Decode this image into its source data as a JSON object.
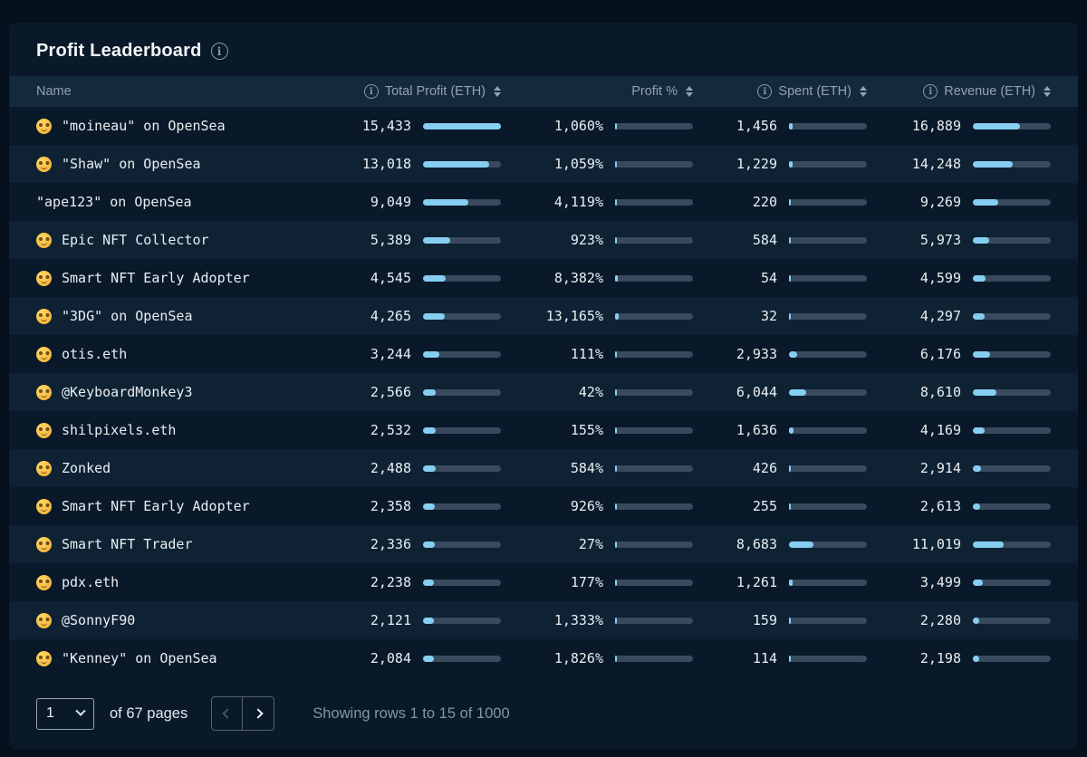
{
  "title": "Profit Leaderboard",
  "columns": {
    "name": "Name",
    "total_profit": "Total Profit (ETH)",
    "profit_pct": "Profit %",
    "spent": "Spent (ETH)",
    "revenue": "Revenue (ETH)"
  },
  "bar_max": {
    "total_profit": 15433,
    "profit_pct": 280000,
    "spent": 28000,
    "revenue": 28000
  },
  "colors": {
    "bar_fill": "#85cef2",
    "bar_track": "#394a5e",
    "row_alt": "#0e2233",
    "header_row": "#14293c",
    "card_bg": "#0a1929"
  },
  "rows": [
    {
      "emoji": "nerd-face",
      "name": "\"moineau\" on OpenSea",
      "total_profit": 15433,
      "total_profit_display": "15,433",
      "profit_pct": 1060,
      "profit_pct_display": "1,060%",
      "spent": 1456,
      "spent_display": "1,456",
      "revenue": 16889,
      "revenue_display": "16,889"
    },
    {
      "emoji": "nerd-face",
      "name": "\"Shaw\" on OpenSea",
      "total_profit": 13018,
      "total_profit_display": "13,018",
      "profit_pct": 1059,
      "profit_pct_display": "1,059%",
      "spent": 1229,
      "spent_display": "1,229",
      "revenue": 14248,
      "revenue_display": "14,248"
    },
    {
      "emoji": "",
      "name": "\"ape123\" on OpenSea",
      "total_profit": 9049,
      "total_profit_display": "9,049",
      "profit_pct": 4119,
      "profit_pct_display": "4,119%",
      "spent": 220,
      "spent_display": "220",
      "revenue": 9269,
      "revenue_display": "9,269"
    },
    {
      "emoji": "nerd-face",
      "name": "Epic NFT Collector",
      "total_profit": 5389,
      "total_profit_display": "5,389",
      "profit_pct": 923,
      "profit_pct_display": "923%",
      "spent": 584,
      "spent_display": "584",
      "revenue": 5973,
      "revenue_display": "5,973"
    },
    {
      "emoji": "nerd-face",
      "name": "Smart NFT Early Adopter",
      "total_profit": 4545,
      "total_profit_display": "4,545",
      "profit_pct": 8382,
      "profit_pct_display": "8,382%",
      "spent": 54,
      "spent_display": "54",
      "revenue": 4599,
      "revenue_display": "4,599"
    },
    {
      "emoji": "nerd-face",
      "name": "\"3DG\" on OpenSea",
      "total_profit": 4265,
      "total_profit_display": "4,265",
      "profit_pct": 13165,
      "profit_pct_display": "13,165%",
      "spent": 32,
      "spent_display": "32",
      "revenue": 4297,
      "revenue_display": "4,297"
    },
    {
      "emoji": "nerd-face",
      "name": "otis.eth",
      "total_profit": 3244,
      "total_profit_display": "3,244",
      "profit_pct": 111,
      "profit_pct_display": "111%",
      "spent": 2933,
      "spent_display": "2,933",
      "revenue": 6176,
      "revenue_display": "6,176"
    },
    {
      "emoji": "nerd-face",
      "name": "@KeyboardMonkey3",
      "total_profit": 2566,
      "total_profit_display": "2,566",
      "profit_pct": 42,
      "profit_pct_display": "42%",
      "spent": 6044,
      "spent_display": "6,044",
      "revenue": 8610,
      "revenue_display": "8,610"
    },
    {
      "emoji": "nerd-face",
      "name": "shilpixels.eth",
      "total_profit": 2532,
      "total_profit_display": "2,532",
      "profit_pct": 155,
      "profit_pct_display": "155%",
      "spent": 1636,
      "spent_display": "1,636",
      "revenue": 4169,
      "revenue_display": "4,169"
    },
    {
      "emoji": "nerd-face",
      "name": "Zonked",
      "total_profit": 2488,
      "total_profit_display": "2,488",
      "profit_pct": 584,
      "profit_pct_display": "584%",
      "spent": 426,
      "spent_display": "426",
      "revenue": 2914,
      "revenue_display": "2,914"
    },
    {
      "emoji": "nerd-face",
      "name": "Smart NFT Early Adopter",
      "total_profit": 2358,
      "total_profit_display": "2,358",
      "profit_pct": 926,
      "profit_pct_display": "926%",
      "spent": 255,
      "spent_display": "255",
      "revenue": 2613,
      "revenue_display": "2,613"
    },
    {
      "emoji": "nerd-face",
      "name": "Smart NFT Trader",
      "total_profit": 2336,
      "total_profit_display": "2,336",
      "profit_pct": 27,
      "profit_pct_display": "27%",
      "spent": 8683,
      "spent_display": "8,683",
      "revenue": 11019,
      "revenue_display": "11,019"
    },
    {
      "emoji": "nerd-face",
      "name": "pdx.eth",
      "total_profit": 2238,
      "total_profit_display": "2,238",
      "profit_pct": 177,
      "profit_pct_display": "177%",
      "spent": 1261,
      "spent_display": "1,261",
      "revenue": 3499,
      "revenue_display": "3,499"
    },
    {
      "emoji": "nerd-face",
      "name": "@SonnyF90",
      "total_profit": 2121,
      "total_profit_display": "2,121",
      "profit_pct": 1333,
      "profit_pct_display": "1,333%",
      "spent": 159,
      "spent_display": "159",
      "revenue": 2280,
      "revenue_display": "2,280"
    },
    {
      "emoji": "nerd-face",
      "name": "\"Kenney\" on OpenSea",
      "total_profit": 2084,
      "total_profit_display": "2,084",
      "profit_pct": 1826,
      "profit_pct_display": "1,826%",
      "spent": 114,
      "spent_display": "114",
      "revenue": 2198,
      "revenue_display": "2,198"
    }
  ],
  "footer": {
    "page_value": "1",
    "pages_label": "of 67 pages",
    "showing_label": "Showing rows 1 to 15 of 1000"
  }
}
